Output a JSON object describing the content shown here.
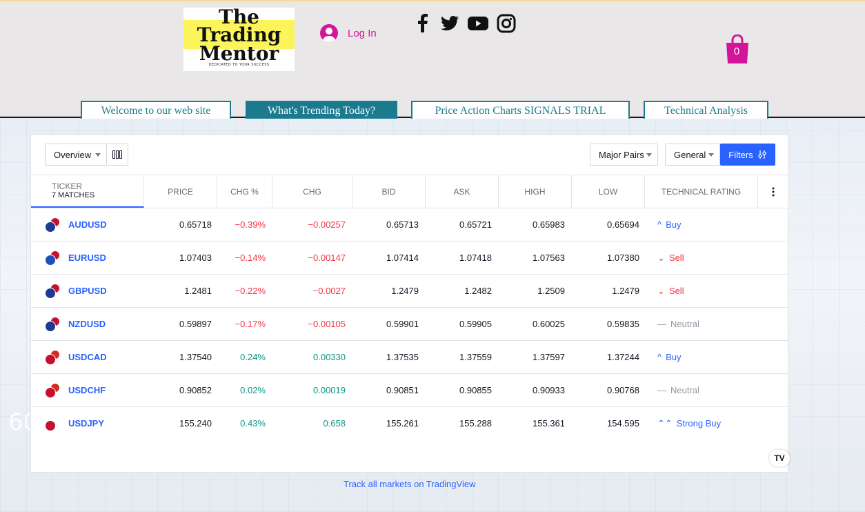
{
  "logo": {
    "line1": "The",
    "line2": "Trading",
    "line3": "Mentor",
    "tagline": "DEDICATED TO YOUR SUCCESS"
  },
  "header": {
    "login_label": "Log In",
    "cart_count": "0",
    "accent": "#d4159a"
  },
  "social": [
    "facebook-icon",
    "twitter-icon",
    "youtube-icon",
    "instagram-icon"
  ],
  "nav": {
    "tabs": [
      {
        "label": "Welcome to our web site"
      },
      {
        "label": "What's Trending Today?"
      },
      {
        "label": "Price Action Charts SIGNALS TRIAL"
      },
      {
        "label": "Technical Analysis"
      }
    ],
    "active_tab": "What's Trending Today?"
  },
  "screener": {
    "view_select": "Overview",
    "pairs_select": "Major Pairs",
    "general_select": "General",
    "filters_label": "Filters",
    "columns": {
      "ticker": "TICKER",
      "matches": "7 MATCHES",
      "price": "PRICE",
      "chg_pct": "CHG %",
      "chg": "CHG",
      "bid": "BID",
      "ask": "ASK",
      "high": "HIGH",
      "low": "LOW",
      "rating": "TECHNICAL RATING"
    },
    "rows": [
      {
        "symbol": "AUDUSD",
        "price": "0.65718",
        "chg_pct": "−0.39%",
        "chg": "−0.00257",
        "bid": "0.65713",
        "ask": "0.65721",
        "high": "0.65983",
        "low": "0.65694",
        "rating": "Buy",
        "rating_icon": "^",
        "dir": "neg",
        "rclass": "r-buy",
        "f1": "#1f3a93",
        "f2": "#c8102e"
      },
      {
        "symbol": "EURUSD",
        "price": "1.07403",
        "chg_pct": "−0.14%",
        "chg": "−0.00147",
        "bid": "1.07414",
        "ask": "1.07418",
        "high": "1.07563",
        "low": "1.07380",
        "rating": "Sell",
        "rating_icon": "⌄",
        "dir": "neg",
        "rclass": "r-sell",
        "f1": "#1f4fb8",
        "f2": "#c8102e"
      },
      {
        "symbol": "GBPUSD",
        "price": "1.2481",
        "chg_pct": "−0.22%",
        "chg": "−0.0027",
        "bid": "1.2479",
        "ask": "1.2482",
        "high": "1.2509",
        "low": "1.2479",
        "rating": "Sell",
        "rating_icon": "⌄",
        "dir": "neg",
        "rclass": "r-sell",
        "f1": "#1f3a93",
        "f2": "#c8102e"
      },
      {
        "symbol": "NZDUSD",
        "price": "0.59897",
        "chg_pct": "−0.17%",
        "chg": "−0.00105",
        "bid": "0.59901",
        "ask": "0.59905",
        "high": "0.60025",
        "low": "0.59835",
        "rating": "Neutral",
        "rating_icon": "—",
        "dir": "neg",
        "rclass": "r-neu",
        "f1": "#1f3a93",
        "f2": "#c8102e"
      },
      {
        "symbol": "USDCAD",
        "price": "1.37540",
        "chg_pct": "0.24%",
        "chg": "0.00330",
        "bid": "1.37535",
        "ask": "1.37559",
        "high": "1.37597",
        "low": "1.37244",
        "rating": "Buy",
        "rating_icon": "^",
        "dir": "pos",
        "rclass": "r-buy",
        "f1": "#c8102e",
        "f2": "#d52b1e"
      },
      {
        "symbol": "USDCHF",
        "price": "0.90852",
        "chg_pct": "0.02%",
        "chg": "0.00019",
        "bid": "0.90851",
        "ask": "0.90855",
        "high": "0.90933",
        "low": "0.90768",
        "rating": "Neutral",
        "rating_icon": "—",
        "dir": "pos",
        "rclass": "r-neu",
        "f1": "#c8102e",
        "f2": "#d52b1e"
      },
      {
        "symbol": "USDJPY",
        "price": "155.240",
        "chg_pct": "0.43%",
        "chg": "0.658",
        "bid": "155.261",
        "ask": "155.288",
        "high": "155.361",
        "low": "154.595",
        "rating": "Strong Buy",
        "rating_icon": "⌃⌃",
        "dir": "pos",
        "rclass": "r-buy",
        "f1": "#c8102e",
        "f2": "#ffffff"
      }
    ]
  },
  "tv_logo": "TV",
  "track_link": "Track all markets on TradingView",
  "background_number": "60"
}
